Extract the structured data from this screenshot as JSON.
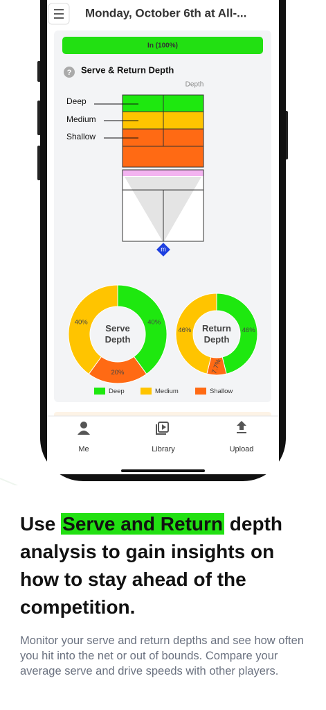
{
  "header": {
    "title": "Monday, October 6th at All-..."
  },
  "banner": {
    "label": "In (100%)"
  },
  "section": {
    "title": "Serve & Return Depth",
    "court_label": "Depth",
    "zones": [
      "Deep",
      "Medium",
      "Shallow"
    ],
    "marker": "m"
  },
  "chart_data": [
    {
      "type": "pie",
      "title": "Serve Depth",
      "categories": [
        "Deep",
        "Medium",
        "Shallow"
      ],
      "values": [
        40,
        40,
        20
      ],
      "value_labels": [
        "40%",
        "40%",
        "20%"
      ],
      "colors": [
        "#1ee80f",
        "#ffc400",
        "#ff6a14"
      ]
    },
    {
      "type": "pie",
      "title": "Return Depth",
      "categories": [
        "Deep",
        "Medium",
        "Shallow"
      ],
      "values": [
        46,
        46,
        7.7
      ],
      "value_labels": [
        "46%",
        "46%",
        "7.7%"
      ],
      "colors": [
        "#1ee80f",
        "#ffc400",
        "#ff6a14"
      ]
    }
  ],
  "nav": [
    "Me",
    "Library",
    "Upload"
  ],
  "headline": {
    "before": "Use",
    "highlight": "Serve and Return",
    "after": "depth analysis to gain insights on how to stay ahead of the competition."
  },
  "body": "Monitor your serve and return depths and see how often you hit into the net or out of bounds. Compare your average serve and drive speeds with other players."
}
